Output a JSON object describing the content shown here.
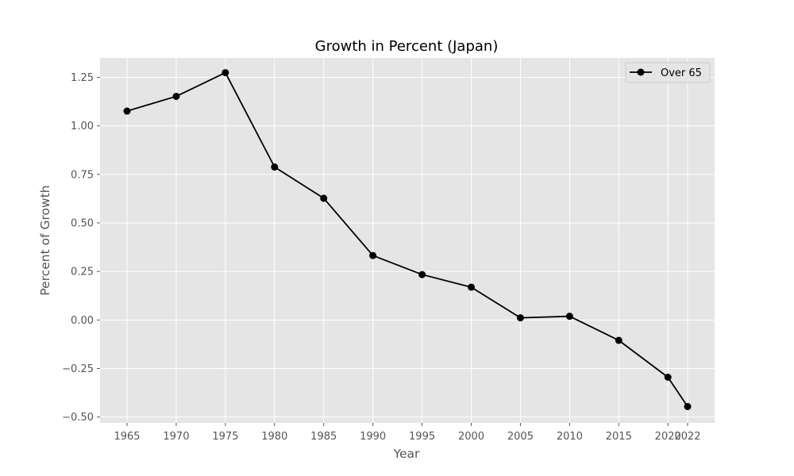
{
  "chart_data": {
    "type": "line",
    "title": "Growth in Percent (Japan)",
    "xlabel": "Year",
    "ylabel": "Percent of Growth",
    "x": [
      "1965",
      "1970",
      "1975",
      "1980",
      "1985",
      "1990",
      "1995",
      "2000",
      "2005",
      "2010",
      "2015",
      "2020",
      "2022"
    ],
    "series": [
      {
        "name": "Over 65",
        "values": [
          1.076,
          1.152,
          1.274,
          0.788,
          0.627,
          0.332,
          0.234,
          0.169,
          0.011,
          0.019,
          -0.105,
          -0.295,
          -0.446
        ],
        "color": "#000000",
        "marker": "circle"
      }
    ],
    "yticks": [
      "−0.50",
      "−0.25",
      "0.00",
      "0.25",
      "0.50",
      "0.75",
      "1.00",
      "1.25"
    ],
    "ylim": [
      -0.53,
      1.35
    ],
    "grid": true,
    "legend": "top-right",
    "plot_background": "#e5e5e5",
    "grid_color": "#ffffff"
  }
}
